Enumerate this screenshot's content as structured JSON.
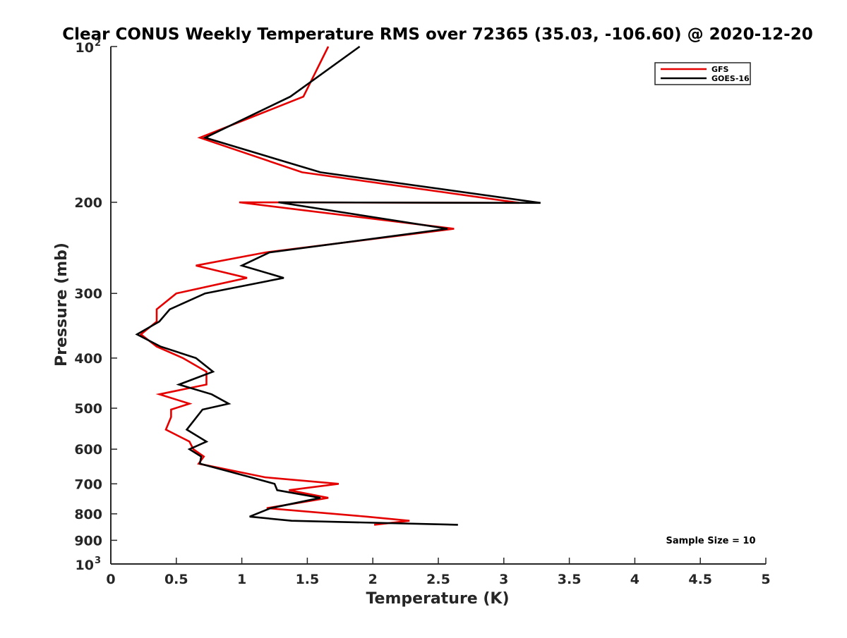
{
  "chart_data": {
    "type": "line",
    "title": "Clear CONUS Weekly Temperature RMS over 72365 (35.03, -106.60) @ 2020-12-20",
    "xlabel": "Temperature (K)",
    "ylabel": "Pressure (mb)",
    "xlim": [
      0,
      5
    ],
    "ylim": [
      100,
      1000
    ],
    "y_scale": "log",
    "y_reversed": true,
    "x_ticks": [
      {
        "value": 0,
        "label": "0"
      },
      {
        "value": 0.5,
        "label": "0.5"
      },
      {
        "value": 1,
        "label": "1"
      },
      {
        "value": 1.5,
        "label": "1.5"
      },
      {
        "value": 2,
        "label": "2"
      },
      {
        "value": 2.5,
        "label": "2.5"
      },
      {
        "value": 3,
        "label": "3"
      },
      {
        "value": 3.5,
        "label": "3.5"
      },
      {
        "value": 4,
        "label": "4"
      },
      {
        "value": 4.5,
        "label": "4.5"
      },
      {
        "value": 5,
        "label": "5"
      }
    ],
    "y_ticks": [
      {
        "value": 200,
        "label": "200"
      },
      {
        "value": 300,
        "label": "300"
      },
      {
        "value": 400,
        "label": "400"
      },
      {
        "value": 500,
        "label": "500"
      },
      {
        "value": 600,
        "label": "600"
      },
      {
        "value": 700,
        "label": "700"
      },
      {
        "value": 800,
        "label": "800"
      },
      {
        "value": 900,
        "label": "900"
      }
    ],
    "y_power_ticks": [
      {
        "value": 100,
        "base": "10",
        "exp": "2"
      },
      {
        "value": 1000,
        "base": "10",
        "exp": "3"
      }
    ],
    "grid": false,
    "legend_position": "top-right",
    "series": [
      {
        "name": "GFS",
        "color": "#e50000",
        "points": [
          {
            "x": 1.66,
            "p": 100
          },
          {
            "x": 1.47,
            "p": 125
          },
          {
            "x": 0.68,
            "p": 150
          },
          {
            "x": 1.46,
            "p": 175
          },
          {
            "x": 3.12,
            "p": 200.5
          },
          {
            "x": 0.98,
            "p": 200
          },
          {
            "x": 2.62,
            "p": 225
          },
          {
            "x": 1.18,
            "p": 250
          },
          {
            "x": 0.65,
            "p": 265
          },
          {
            "x": 1.04,
            "p": 280
          },
          {
            "x": 0.5,
            "p": 300
          },
          {
            "x": 0.35,
            "p": 322
          },
          {
            "x": 0.35,
            "p": 340
          },
          {
            "x": 0.23,
            "p": 360
          },
          {
            "x": 0.35,
            "p": 380
          },
          {
            "x": 0.55,
            "p": 400
          },
          {
            "x": 0.73,
            "p": 425
          },
          {
            "x": 0.73,
            "p": 450
          },
          {
            "x": 0.37,
            "p": 470
          },
          {
            "x": 0.6,
            "p": 490
          },
          {
            "x": 0.46,
            "p": 503
          },
          {
            "x": 0.46,
            "p": 520
          },
          {
            "x": 0.42,
            "p": 550
          },
          {
            "x": 0.6,
            "p": 580
          },
          {
            "x": 0.63,
            "p": 600
          },
          {
            "x": 0.71,
            "p": 620
          },
          {
            "x": 0.67,
            "p": 640
          },
          {
            "x": 1.18,
            "p": 680
          },
          {
            "x": 1.74,
            "p": 700
          },
          {
            "x": 1.36,
            "p": 720
          },
          {
            "x": 1.66,
            "p": 745
          },
          {
            "x": 1.19,
            "p": 780
          },
          {
            "x": 1.95,
            "p": 810
          },
          {
            "x": 2.28,
            "p": 825
          },
          {
            "x": 2.01,
            "p": 840
          }
        ]
      },
      {
        "name": "GOES-16",
        "color": "#000000",
        "points": [
          {
            "x": 1.9,
            "p": 100
          },
          {
            "x": 1.37,
            "p": 125
          },
          {
            "x": 0.72,
            "p": 150
          },
          {
            "x": 1.6,
            "p": 175
          },
          {
            "x": 3.28,
            "p": 200.5
          },
          {
            "x": 1.28,
            "p": 200
          },
          {
            "x": 2.57,
            "p": 225
          },
          {
            "x": 1.21,
            "p": 250
          },
          {
            "x": 1.0,
            "p": 265
          },
          {
            "x": 1.32,
            "p": 280
          },
          {
            "x": 0.72,
            "p": 300
          },
          {
            "x": 0.45,
            "p": 322
          },
          {
            "x": 0.37,
            "p": 340
          },
          {
            "x": 0.2,
            "p": 360
          },
          {
            "x": 0.38,
            "p": 380
          },
          {
            "x": 0.65,
            "p": 400
          },
          {
            "x": 0.78,
            "p": 425
          },
          {
            "x": 0.52,
            "p": 450
          },
          {
            "x": 0.77,
            "p": 470
          },
          {
            "x": 0.9,
            "p": 490
          },
          {
            "x": 0.7,
            "p": 503
          },
          {
            "x": 0.58,
            "p": 550
          },
          {
            "x": 0.73,
            "p": 580
          },
          {
            "x": 0.6,
            "p": 600
          },
          {
            "x": 0.69,
            "p": 620
          },
          {
            "x": 0.68,
            "p": 640
          },
          {
            "x": 1.07,
            "p": 680
          },
          {
            "x": 1.25,
            "p": 700
          },
          {
            "x": 1.27,
            "p": 720
          },
          {
            "x": 1.6,
            "p": 745
          },
          {
            "x": 1.22,
            "p": 780
          },
          {
            "x": 1.06,
            "p": 810
          },
          {
            "x": 1.38,
            "p": 825
          },
          {
            "x": 2.65,
            "p": 840
          }
        ]
      }
    ],
    "annotation": "Sample Size = 10"
  }
}
